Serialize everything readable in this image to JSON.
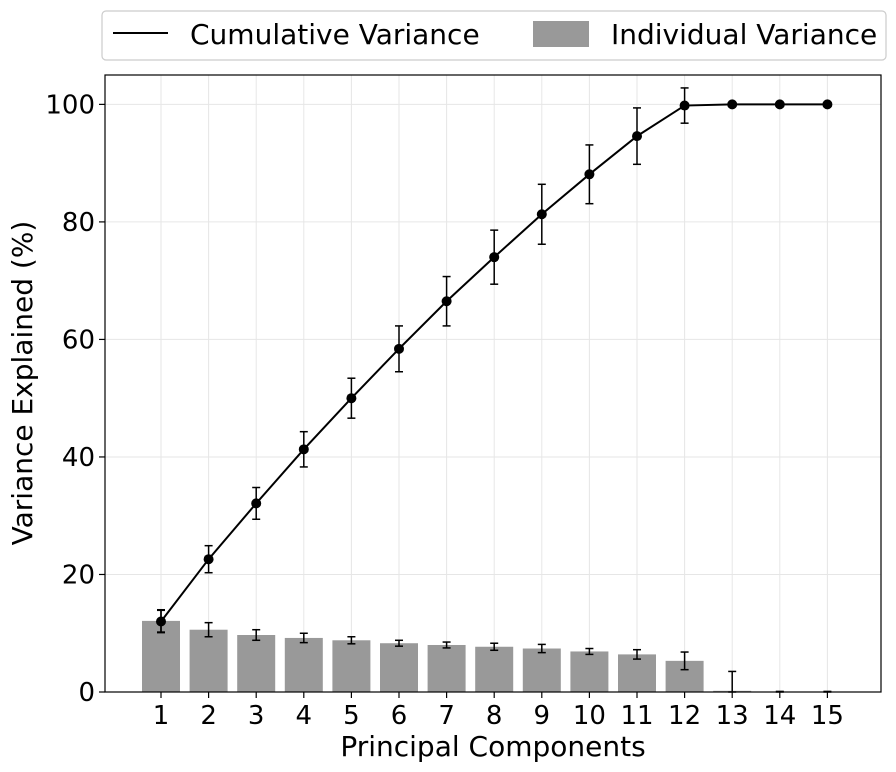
{
  "chart_data": {
    "type": "bar",
    "xlabel": "Principal Components",
    "ylabel": "Variance Explained (%)",
    "categories": [
      "1",
      "2",
      "3",
      "4",
      "5",
      "6",
      "7",
      "8",
      "9",
      "10",
      "11",
      "12",
      "13",
      "14",
      "15"
    ],
    "ylim": [
      0,
      105
    ],
    "yticks": [
      0,
      20,
      40,
      60,
      80,
      100
    ],
    "grid": true,
    "legend_position": "top-center",
    "series": [
      {
        "name": "Individual Variance",
        "type": "bar",
        "color": "#999999",
        "values": [
          12.1,
          10.6,
          9.7,
          9.2,
          8.8,
          8.3,
          8.0,
          7.7,
          7.4,
          6.9,
          6.4,
          5.3,
          0.2,
          0.0,
          0.0
        ],
        "error": [
          1.9,
          1.2,
          0.9,
          0.8,
          0.6,
          0.5,
          0.5,
          0.6,
          0.7,
          0.5,
          0.8,
          1.5,
          3.3,
          0.1,
          0.1
        ]
      },
      {
        "name": "Cumulative Variance",
        "type": "line",
        "color": "#000000",
        "values": [
          12.0,
          22.6,
          32.1,
          41.3,
          50.0,
          58.4,
          66.5,
          74.0,
          81.3,
          88.1,
          94.6,
          99.8,
          100.0,
          100.0,
          100.0
        ],
        "error": [
          1.9,
          2.3,
          2.7,
          3.0,
          3.4,
          3.9,
          4.2,
          4.6,
          5.1,
          5.0,
          4.8,
          3.0,
          0.0,
          0.0,
          0.0
        ]
      }
    ]
  }
}
